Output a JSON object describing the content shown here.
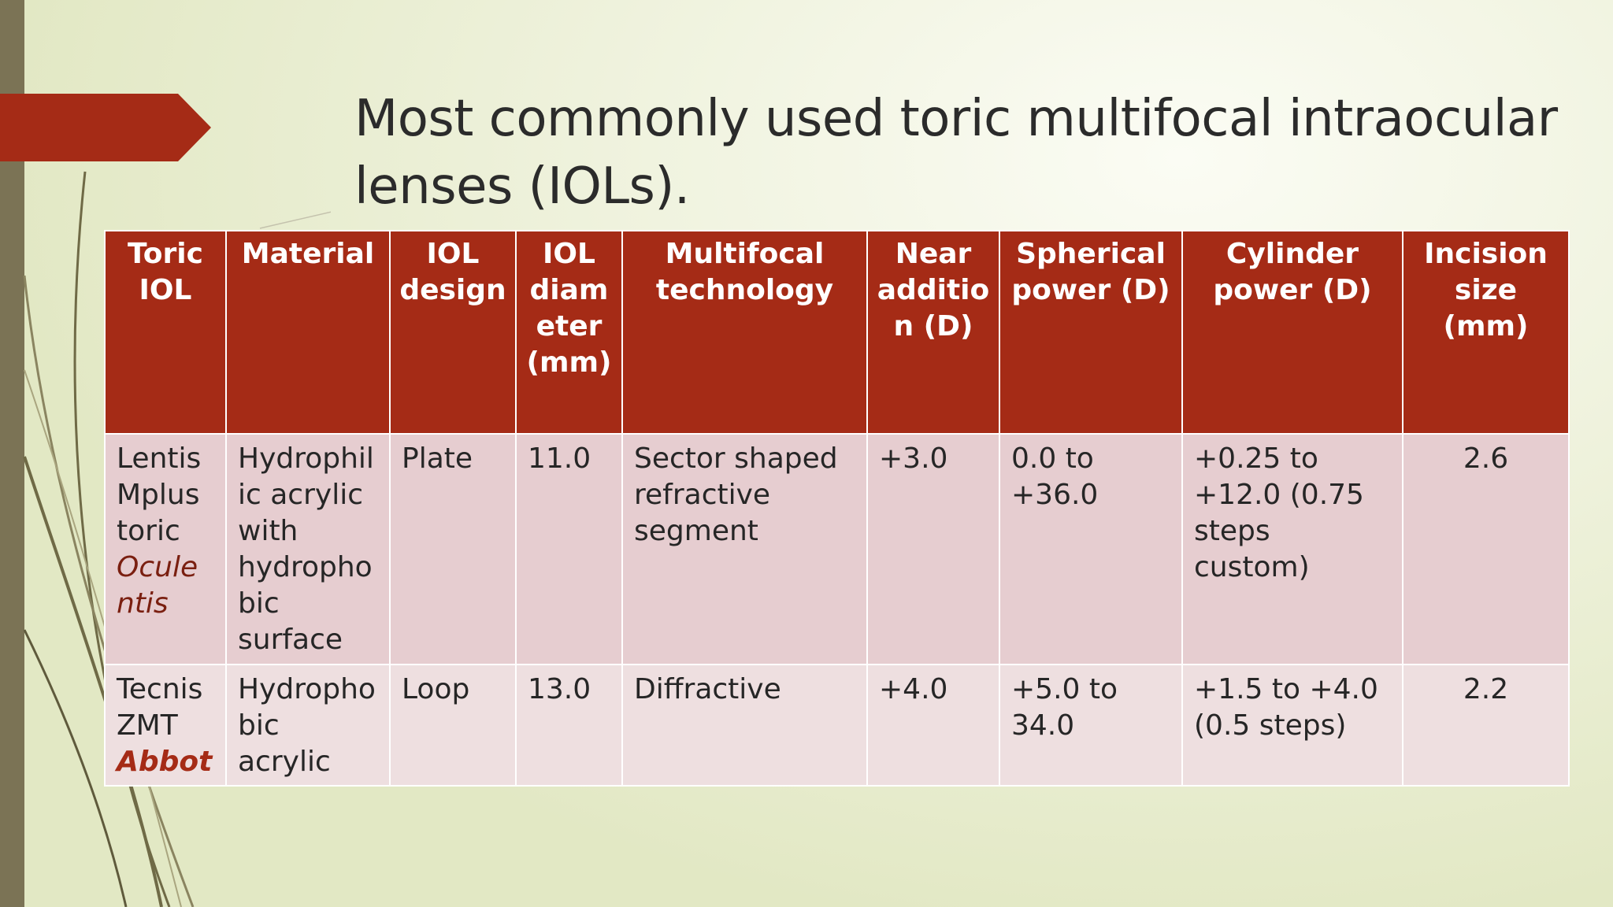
{
  "slide": {
    "title_line1": "Most commonly used toric multifocal intraocular",
    "title_line2": "lenses (IOLs).",
    "accent_color": "#a52b16",
    "sidebar_color": "#7b7355"
  },
  "table": {
    "headers": [
      "Toric IOL",
      "Material",
      "IOL design",
      "IOL diameter (mm)",
      "Multifocal technology",
      "Near addition (D)",
      "Spherical power (D)",
      "Cylinder power (D)",
      "Incision size (mm)"
    ],
    "rows": [
      {
        "name": "Lentis Mplus toric",
        "maker": "Oculentis",
        "material": "Hydrophilic acrylic with hydrophobic surface",
        "design": "Plate",
        "diameter": "11.0",
        "technology": "Sector shaped refractive segment",
        "near_addition": "+3.0",
        "spherical_power": "0.0 to +36.0",
        "cylinder_power": "+0.25 to +12.0 (0.75 steps custom)",
        "incision": "2.6"
      },
      {
        "name": "Tecnis ZMT",
        "maker": "Abbot",
        "material": "Hydrophobic acrylic",
        "design": "Loop",
        "diameter": "13.0",
        "technology": "Diffractive",
        "near_addition": "+4.0",
        "spherical_power": "+5.0 to 34.0",
        "cylinder_power": "+1.5 to +4.0 (0.5 steps)",
        "incision": "2.2"
      }
    ]
  }
}
